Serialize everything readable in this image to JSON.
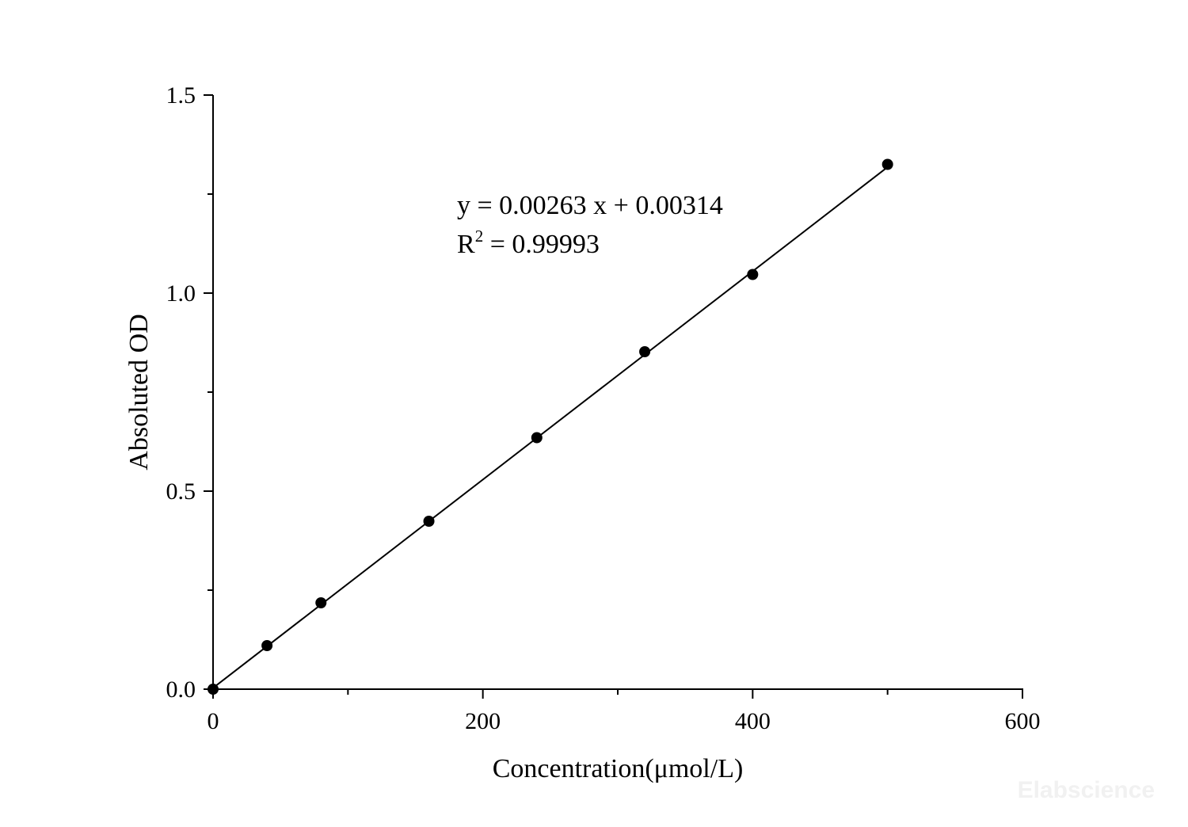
{
  "chart_data": {
    "type": "scatter",
    "title": "",
    "xlabel": "Concentration(μmol/L)",
    "ylabel": "Absoluted OD",
    "xlim": [
      0,
      600
    ],
    "ylim": [
      0,
      1.5
    ],
    "x_ticks": [
      "0",
      "200",
      "400",
      "600"
    ],
    "y_ticks": [
      "0.0",
      "0.5",
      "1.0",
      "1.5"
    ],
    "grid": false,
    "legend": "none",
    "series": [
      {
        "x": [
          0,
          40,
          80,
          160,
          240,
          320,
          400,
          500
        ],
        "y": [
          0.0,
          0.11,
          0.218,
          0.424,
          0.635,
          0.852,
          1.047,
          1.325
        ]
      }
    ],
    "fit": {
      "slope": 0.00263,
      "intercept": 0.00314,
      "x_range": [
        0,
        500
      ]
    },
    "annotations": {
      "equation": "y = 0.00263 x + 0.00314",
      "r2_prefix": "R",
      "r2_sup": "2",
      "r2_suffix": " = 0.99993"
    },
    "colors": {
      "marker": "#000000",
      "line": "#000000",
      "axis": "#000000"
    }
  },
  "watermark": "Elabscience"
}
